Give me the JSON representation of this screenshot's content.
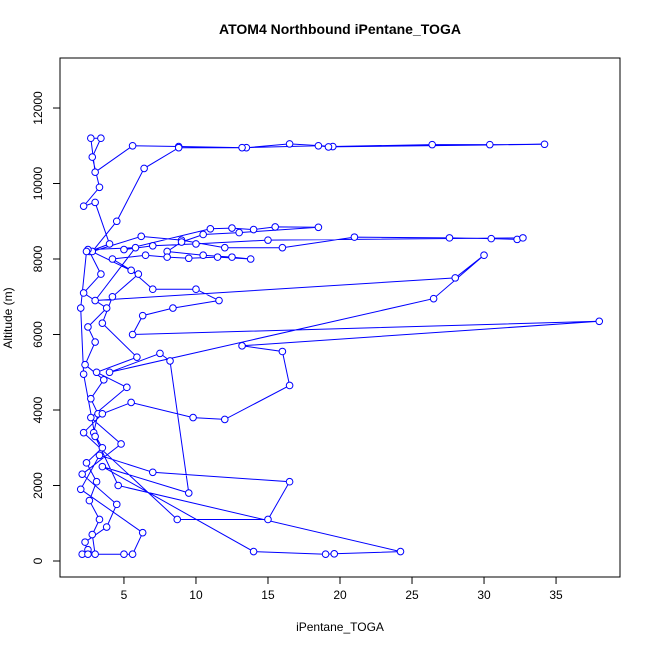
{
  "chart_data": {
    "type": "line",
    "title": "ATOM4 Northbound iPentane_TOGA",
    "x_label": "iPentane_TOGA",
    "y_label": "Altitude (m)",
    "color": "#0000ff",
    "markers": true,
    "xlim": [
      0.56,
      39.44
    ],
    "xticks": [
      5,
      10,
      15,
      20,
      25,
      30,
      35
    ],
    "ylim": [
      -424,
      13325
    ],
    "yticks": [
      0,
      2000,
      4000,
      6000,
      8000,
      10000,
      12000
    ],
    "x": [
      2.1,
      2.5,
      3.0,
      2.8,
      3.3,
      2.6,
      3.1,
      2.4,
      3.5,
      2.9,
      3.2,
      2.7,
      3.6,
      2.3,
      3.0,
      2.5,
      3.8,
      2.2,
      3.4,
      2.6,
      4.0,
      3.0,
      2.2,
      3.3,
      2.8,
      3.4,
      2.7,
      3.0,
      5.6,
      8.8,
      13.5,
      16.5,
      19.5,
      26.4,
      30.4,
      34.2,
      19.2,
      18.5,
      13.2,
      8.8,
      6.4,
      4.5,
      2.8,
      6.2,
      9.0,
      12.0,
      16.0,
      21.0,
      27.6,
      30.5,
      32.3,
      32.7,
      15.0,
      10.0,
      7.0,
      5.0,
      11.0,
      12.5,
      14.0,
      15.5,
      18.5,
      13.0,
      10.5,
      9.0,
      8.0,
      10.5,
      12.5,
      13.8,
      11.5,
      9.5,
      8.0,
      6.5,
      4.2,
      5.5,
      7.0,
      10.0,
      11.6,
      8.4,
      6.3,
      5.6,
      38.0,
      13.2,
      16.0,
      16.5,
      12.0,
      9.8,
      5.5,
      3.5,
      2.2,
      8.7,
      15.0,
      16.5,
      7.0,
      3.3,
      2.0,
      6.3,
      5.6,
      5.0,
      2.5,
      2.3,
      3.8,
      4.5,
      2.1,
      4.8,
      2.7,
      5.2,
      3.1,
      5.9,
      3.5,
      4.2,
      6.0,
      2.5,
      5.8,
      3.0,
      28.0,
      30.0,
      26.5,
      4.0,
      7.5,
      8.2,
      9.5,
      3.5,
      14.0,
      19.0,
      19.6,
      24.2,
      4.6,
      3.0,
      2.2,
      2.0,
      2.4
    ],
    "y": [
      180,
      300,
      180,
      700,
      1100,
      1600,
      2100,
      2600,
      3000,
      3400,
      3900,
      4300,
      4800,
      5200,
      5800,
      6200,
      6700,
      7100,
      7600,
      8200,
      8400,
      9500,
      9400,
      9900,
      10700,
      11200,
      11200,
      10300,
      11000,
      10980,
      10950,
      11050,
      10980,
      11030,
      11030,
      11040,
      10970,
      11000,
      10950,
      10950,
      10400,
      9000,
      8200,
      8600,
      8500,
      8300,
      8300,
      8580,
      8560,
      8540,
      8520,
      8560,
      8500,
      8400,
      8350,
      8250,
      8800,
      8820,
      8780,
      8850,
      8840,
      8700,
      8650,
      8450,
      8200,
      8100,
      8050,
      8000,
      8050,
      8020,
      8050,
      8100,
      8000,
      7700,
      7200,
      7200,
      6900,
      6700,
      6500,
      6000,
      6350,
      5700,
      5550,
      4650,
      3750,
      3800,
      4200,
      3900,
      3400,
      1100,
      1100,
      2100,
      2350,
      2800,
      1900,
      750,
      180,
      180,
      180,
      500,
      900,
      1500,
      2300,
      3100,
      3800,
      4600,
      5000,
      5400,
      6300,
      7000,
      7600,
      8250,
      8300,
      6900,
      7500,
      8100,
      6950,
      5000,
      5500,
      5300,
      1800,
      2500,
      250,
      180,
      190,
      250,
      2000,
      3300,
      4950,
      6700,
      8200
    ]
  }
}
